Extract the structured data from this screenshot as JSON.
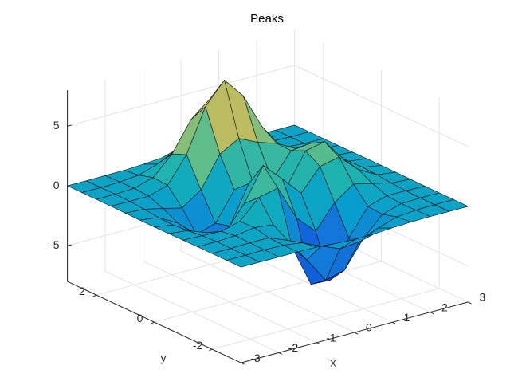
{
  "chart_data": {
    "type": "surface",
    "title": "Peaks",
    "xlabel": "x",
    "ylabel": "y",
    "colormap": "parula",
    "grid": true,
    "xlim": [
      -3,
      3
    ],
    "ylim": [
      -3,
      3
    ],
    "zlim": [
      -8,
      8
    ],
    "xticks": [
      -3,
      -2,
      -1,
      0,
      1,
      2,
      3
    ],
    "yticks": [
      -2,
      0,
      2
    ],
    "zticks": [
      -5,
      0,
      5
    ],
    "x": [
      -3,
      -2.5,
      -2,
      -1.5,
      -1,
      -0.5,
      0,
      0.5,
      1,
      1.5,
      2,
      2.5,
      3
    ],
    "y": [
      -3,
      -2.5,
      -2,
      -1.5,
      -1,
      -0.5,
      0,
      0.5,
      1,
      1.5,
      2,
      2.5,
      3
    ],
    "z": [
      [
        0,
        0,
        0,
        0,
        -0.03,
        -0.14,
        -0.24,
        -0.22,
        -0.11,
        -0.03,
        0,
        0,
        0
      ],
      [
        0,
        0,
        0.02,
        0,
        -0.23,
        -0.92,
        -1.57,
        -1.41,
        -0.69,
        -0.18,
        -0.03,
        0,
        0
      ],
      [
        0,
        0.01,
        0.05,
        0.05,
        -0.59,
        -2.64,
        -4.76,
        -4.35,
        -2.1,
        -0.53,
        -0.06,
        0,
        0
      ],
      [
        0,
        0.01,
        0.08,
        0.33,
        0.15,
        -2.19,
        -5.68,
        -5.76,
        -2.64,
        -0.44,
        0.04,
        0.03,
        0
      ],
      [
        -0.01,
        -0.06,
        -0.13,
        0.3,
        1.86,
        2.23,
        -0.72,
        -2.22,
        -0.27,
        0.88,
        0.5,
        0.11,
        0.01
      ],
      [
        -0.03,
        -0.2,
        -0.8,
        -1.21,
        0.8,
        3.55,
        2,
        0.39,
        2.2,
        2.56,
        1.12,
        0.24,
        0.03
      ],
      [
        -0.04,
        -0.3,
        -1.33,
        -2.77,
        -1.65,
        1.48,
        0.98,
        0.38,
        2.94,
        3.27,
        1.41,
        0.3,
        0.03
      ],
      [
        -0.03,
        -0.25,
        -1.12,
        -2.49,
        -2,
        0.39,
        0.46,
        0.38,
        2.38,
        2.56,
        1.1,
        0.23,
        0.03
      ],
      [
        -0.01,
        -0.11,
        -0.48,
        -0.86,
        0.23,
        2.79,
        3.69,
        2.94,
        2.43,
        1.58,
        0.58,
        0.12,
        0.01
      ],
      [
        0,
        -0.02,
        -0.01,
        0.48,
        2.61,
        6.2,
        8,
        6.25,
        3.25,
        1.19,
        0.29,
        0.05,
        0
      ],
      [
        0,
        0.01,
        0.08,
        0.55,
        2.1,
        4.56,
        5.86,
        4.57,
        2.21,
        0.68,
        0.13,
        0.02,
        0
      ],
      [
        0,
        0,
        0.03,
        0.19,
        0.69,
        1.47,
        1.88,
        1.47,
        0.7,
        0.2,
        0.04,
        0,
        0
      ],
      [
        0,
        0,
        0.01,
        0.03,
        0.11,
        0.23,
        0.3,
        0.23,
        0.11,
        0.03,
        0.01,
        0,
        0
      ]
    ]
  }
}
